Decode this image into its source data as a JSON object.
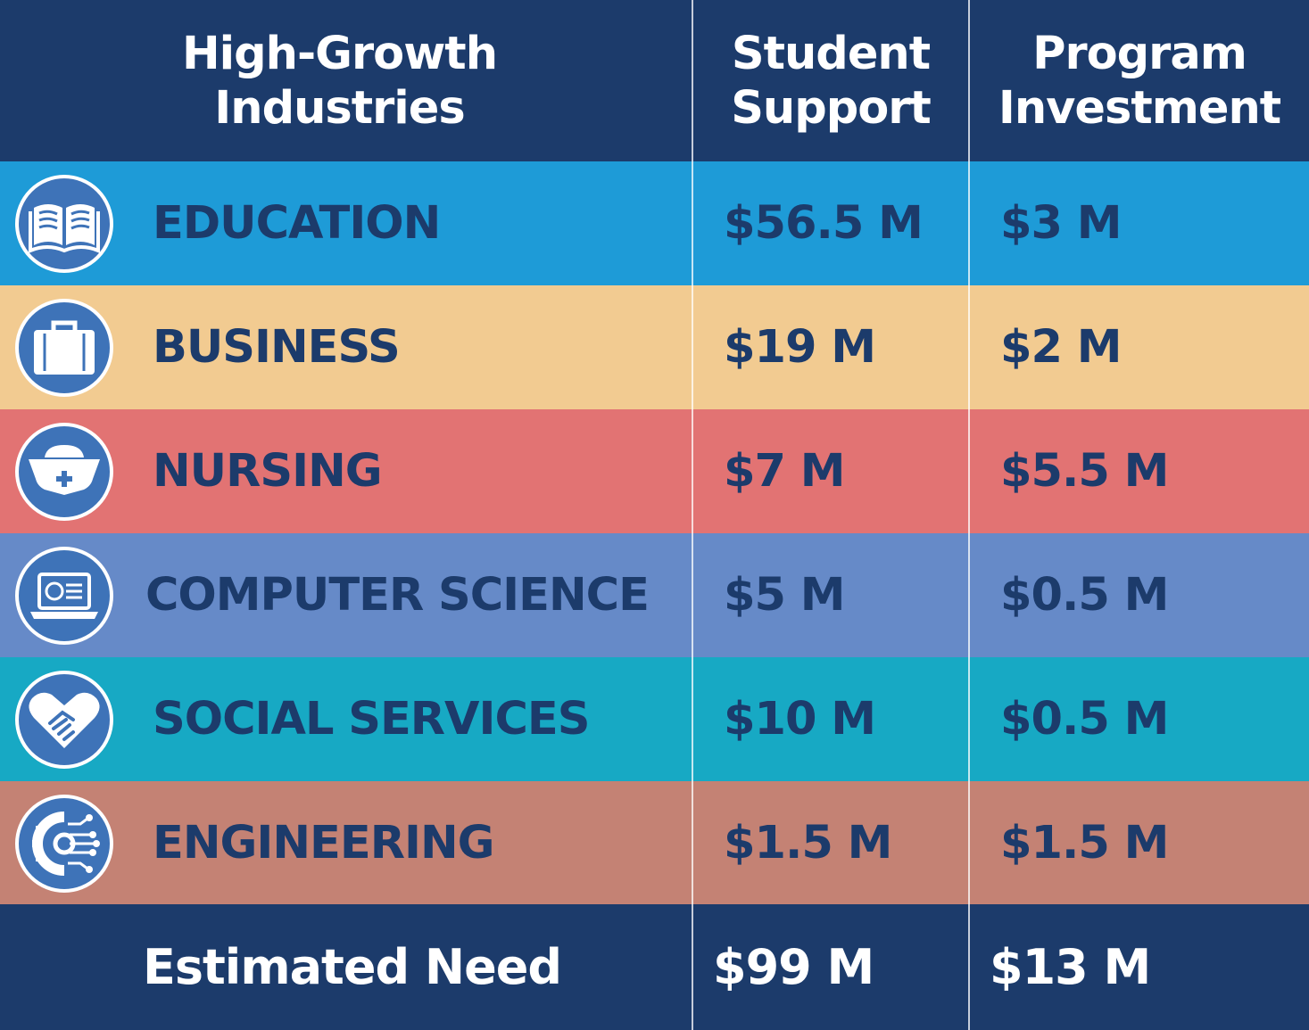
{
  "chart_data": {
    "type": "table",
    "columns": [
      "High-Growth Industries",
      "Student Support",
      "Program Investment"
    ],
    "rows": [
      {
        "industry": "EDUCATION",
        "student_support": "$56.5 M",
        "program_investment": "$3 M",
        "icon": "open-book-icon",
        "color": "#1e9bd7"
      },
      {
        "industry": "BUSINESS",
        "student_support": "$19 M",
        "program_investment": "$2 M",
        "icon": "briefcase-icon",
        "color": "#f2cb91"
      },
      {
        "industry": "NURSING",
        "student_support": "$7 M",
        "program_investment": "$5.5 M",
        "icon": "nurse-cap-icon",
        "color": "#e27373"
      },
      {
        "industry": "COMPUTER SCIENCE",
        "student_support": "$5 M",
        "program_investment": "$0.5 M",
        "icon": "laptop-icon",
        "color": "#668ac8"
      },
      {
        "industry": "SOCIAL SERVICES",
        "student_support": "$10 M",
        "program_investment": "$0.5 M",
        "icon": "heart-handshake-icon",
        "color": "#17a9c4"
      },
      {
        "industry": "ENGINEERING",
        "student_support": "$1.5 M",
        "program_investment": "$1.5 M",
        "icon": "gear-circuit-icon",
        "color": "#c48274"
      }
    ],
    "total": {
      "label": "Estimated Need",
      "student_support": "$99 M",
      "program_investment": "$13 M"
    }
  },
  "header": {
    "col1_line1": "High-Growth",
    "col1_line2": "Industries",
    "col2_line1": "Student",
    "col2_line2": "Support",
    "col3_line1": "Program",
    "col3_line2": "Investment"
  },
  "colors": {
    "header_bg": "#1c3b6b",
    "text_dark": "#1c3b6b",
    "icon_fill": "#3e73b8"
  }
}
